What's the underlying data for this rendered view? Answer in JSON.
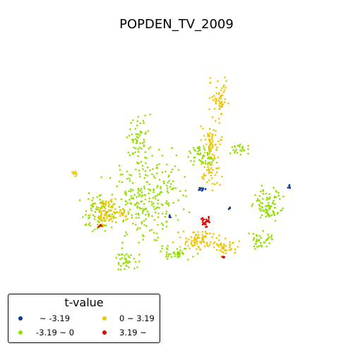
{
  "title": "POPDEN_TV_2009",
  "colors": {
    "lt_neg": "#0b3a9c",
    "neg_to_zero": "#93e000",
    "zero_to_pos": "#f2c500",
    "gt_pos": "#e00000"
  },
  "legend": {
    "title": "t-value",
    "entries": [
      {
        "label": " ~ -3.19",
        "color_key": "lt_neg"
      },
      {
        "label": "-3.19 ~ 0",
        "color_key": "neg_to_zero"
      },
      {
        "label": "0 ~ 3.19",
        "color_key": "zero_to_pos"
      },
      {
        "label": "3.19 ~",
        "color_key": "gt_pos"
      }
    ]
  }
}
